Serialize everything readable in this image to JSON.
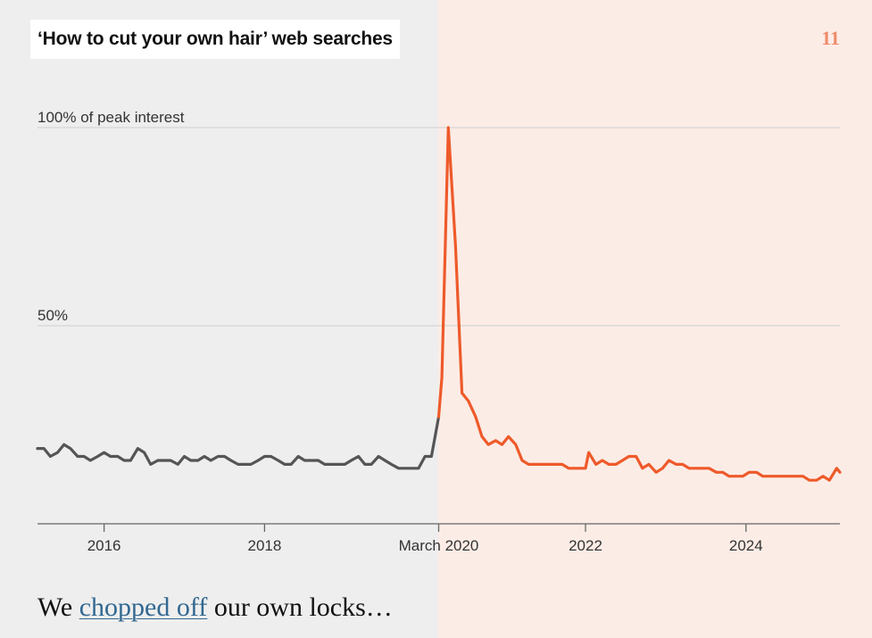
{
  "header": {
    "title": "‘How to cut your own hair’ web searches",
    "page_number": "11"
  },
  "caption": {
    "before": "We ",
    "link": "chopped off",
    "after": " our own locks…"
  },
  "colors": {
    "pre_line": "#555555",
    "post_line": "#ee5a2a",
    "pre_background": "#eeeeee",
    "post_background": "#fcece6",
    "page_number": "#ef8b6a",
    "link": "#326891"
  },
  "chart_data": {
    "type": "line",
    "title": "‘How to cut your own hair’ web searches",
    "ylim": [
      0,
      100
    ],
    "y_ticks": [
      {
        "value": 100,
        "label": "100% of peak interest"
      },
      {
        "value": 50,
        "label": "50%"
      }
    ],
    "x_ticks": [
      {
        "value": 2016,
        "label": "2016"
      },
      {
        "value": 2018,
        "label": "2018"
      },
      {
        "value": 2020.17,
        "label": "March 2020"
      },
      {
        "value": 2022,
        "label": "2022"
      },
      {
        "value": 2024,
        "label": "2024"
      }
    ],
    "xlim": [
      2015.17,
      2025.17
    ],
    "divider_x": 2020.17,
    "grid": true,
    "series": [
      {
        "segment": "before",
        "points": [
          [
            2015.17,
            19
          ],
          [
            2015.25,
            19
          ],
          [
            2015.33,
            17
          ],
          [
            2015.42,
            18
          ],
          [
            2015.5,
            20
          ],
          [
            2015.58,
            19
          ],
          [
            2015.67,
            17
          ],
          [
            2015.75,
            17
          ],
          [
            2015.83,
            16
          ],
          [
            2015.92,
            17
          ],
          [
            2016.0,
            18
          ],
          [
            2016.08,
            17
          ],
          [
            2016.17,
            17
          ],
          [
            2016.25,
            16
          ],
          [
            2016.33,
            16
          ],
          [
            2016.42,
            19
          ],
          [
            2016.5,
            18
          ],
          [
            2016.58,
            15
          ],
          [
            2016.67,
            16
          ],
          [
            2016.75,
            16
          ],
          [
            2016.83,
            16
          ],
          [
            2016.92,
            15
          ],
          [
            2017.0,
            17
          ],
          [
            2017.08,
            16
          ],
          [
            2017.17,
            16
          ],
          [
            2017.25,
            17
          ],
          [
            2017.33,
            16
          ],
          [
            2017.42,
            17
          ],
          [
            2017.5,
            17
          ],
          [
            2017.58,
            16
          ],
          [
            2017.67,
            15
          ],
          [
            2017.75,
            15
          ],
          [
            2017.83,
            15
          ],
          [
            2017.92,
            16
          ],
          [
            2018.0,
            17
          ],
          [
            2018.08,
            17
          ],
          [
            2018.17,
            16
          ],
          [
            2018.25,
            15
          ],
          [
            2018.33,
            15
          ],
          [
            2018.42,
            17
          ],
          [
            2018.5,
            16
          ],
          [
            2018.58,
            16
          ],
          [
            2018.67,
            16
          ],
          [
            2018.75,
            15
          ],
          [
            2018.83,
            15
          ],
          [
            2018.92,
            15
          ],
          [
            2019.0,
            15
          ],
          [
            2019.08,
            16
          ],
          [
            2019.17,
            17
          ],
          [
            2019.25,
            15
          ],
          [
            2019.33,
            15
          ],
          [
            2019.42,
            17
          ],
          [
            2019.5,
            16
          ],
          [
            2019.58,
            15
          ],
          [
            2019.67,
            14
          ],
          [
            2019.75,
            14
          ],
          [
            2019.83,
            14
          ],
          [
            2019.92,
            14
          ],
          [
            2020.0,
            17
          ],
          [
            2020.08,
            17
          ],
          [
            2020.17,
            27
          ]
        ]
      },
      {
        "segment": "after",
        "points": [
          [
            2020.17,
            27
          ],
          [
            2020.21,
            37
          ],
          [
            2020.29,
            100
          ],
          [
            2020.38,
            70
          ],
          [
            2020.46,
            33
          ],
          [
            2020.54,
            31
          ],
          [
            2020.63,
            27
          ],
          [
            2020.71,
            22
          ],
          [
            2020.79,
            20
          ],
          [
            2020.88,
            21
          ],
          [
            2020.96,
            20
          ],
          [
            2021.04,
            22
          ],
          [
            2021.13,
            20
          ],
          [
            2021.21,
            16
          ],
          [
            2021.29,
            15
          ],
          [
            2021.38,
            15
          ],
          [
            2021.46,
            15
          ],
          [
            2021.54,
            15
          ],
          [
            2021.63,
            15
          ],
          [
            2021.71,
            15
          ],
          [
            2021.79,
            14
          ],
          [
            2021.88,
            14
          ],
          [
            2021.96,
            14
          ],
          [
            2022.0,
            14
          ],
          [
            2022.04,
            18
          ],
          [
            2022.13,
            15
          ],
          [
            2022.21,
            16
          ],
          [
            2022.29,
            15
          ],
          [
            2022.38,
            15
          ],
          [
            2022.46,
            16
          ],
          [
            2022.54,
            17
          ],
          [
            2022.63,
            17
          ],
          [
            2022.71,
            14
          ],
          [
            2022.79,
            15
          ],
          [
            2022.88,
            13
          ],
          [
            2022.96,
            14
          ],
          [
            2023.04,
            16
          ],
          [
            2023.13,
            15
          ],
          [
            2023.21,
            15
          ],
          [
            2023.29,
            14
          ],
          [
            2023.38,
            14
          ],
          [
            2023.46,
            14
          ],
          [
            2023.54,
            14
          ],
          [
            2023.63,
            13
          ],
          [
            2023.71,
            13
          ],
          [
            2023.79,
            12
          ],
          [
            2023.88,
            12
          ],
          [
            2023.96,
            12
          ],
          [
            2024.04,
            13
          ],
          [
            2024.13,
            13
          ],
          [
            2024.21,
            12
          ],
          [
            2024.29,
            12
          ],
          [
            2024.38,
            12
          ],
          [
            2024.46,
            12
          ],
          [
            2024.54,
            12
          ],
          [
            2024.63,
            12
          ],
          [
            2024.71,
            12
          ],
          [
            2024.79,
            11
          ],
          [
            2024.88,
            11
          ],
          [
            2024.96,
            12
          ],
          [
            2025.04,
            11
          ],
          [
            2025.13,
            14
          ],
          [
            2025.17,
            13
          ]
        ]
      }
    ]
  }
}
